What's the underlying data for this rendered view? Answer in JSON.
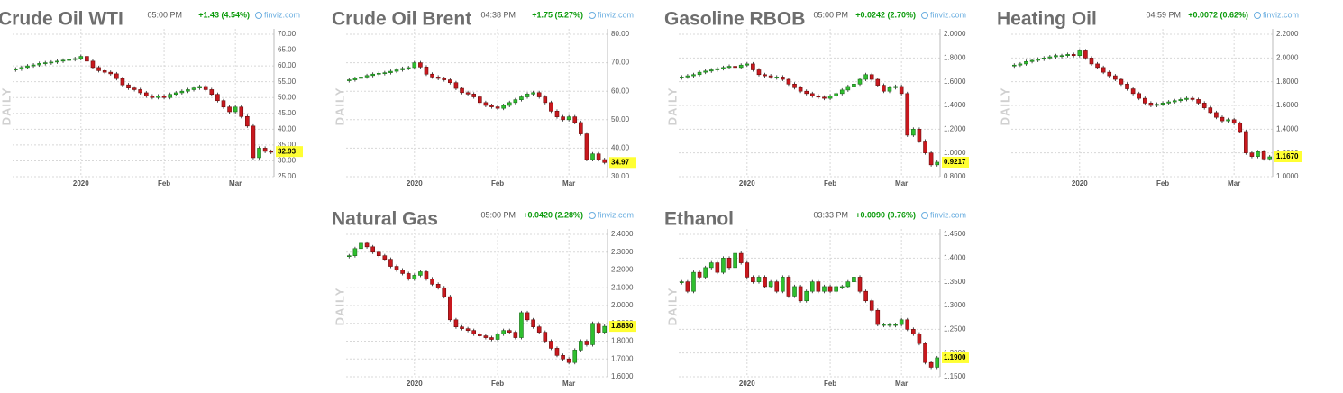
{
  "chart_data": [
    {
      "type": "candlestick",
      "title": "Crude Oil WTI",
      "time": "05:00 PM",
      "change": "+1.43 (4.54%)",
      "source": "finviz.com",
      "period": "DAILY",
      "categories": [
        null,
        null,
        null,
        null,
        null,
        null,
        null,
        null,
        null,
        null,
        null,
        "2020",
        null,
        null,
        null,
        null,
        null,
        null,
        null,
        null,
        null,
        null,
        null,
        null,
        null,
        "Feb",
        null,
        null,
        null,
        null,
        null,
        null,
        null,
        null,
        null,
        null,
        null,
        "Mar",
        null,
        null,
        null,
        null,
        null,
        null
      ],
      "close": [
        59,
        59.5,
        60,
        60.3,
        60.8,
        61,
        61.2,
        61.5,
        61.8,
        62,
        62.3,
        63,
        61.5,
        59.5,
        58.5,
        58,
        57.5,
        56,
        54,
        53,
        52.5,
        51.5,
        50.5,
        50,
        50.5,
        50,
        51,
        51.5,
        52,
        52.5,
        53,
        53.5,
        52.5,
        51,
        49,
        47,
        45.5,
        47,
        44,
        41,
        31,
        34,
        33,
        32.93
      ],
      "last": 32.93,
      "ylim": [
        25,
        70
      ],
      "yticks": [
        {
          "value": 25,
          "label": "25.00"
        },
        {
          "value": 30,
          "label": "30.00"
        },
        {
          "value": 35,
          "label": "35.00"
        },
        {
          "value": 40,
          "label": "40.00"
        },
        {
          "value": 45,
          "label": "45.00"
        },
        {
          "value": 50,
          "label": "50.00"
        },
        {
          "value": 55,
          "label": "55.00"
        },
        {
          "value": 60,
          "label": "60.00"
        },
        {
          "value": 65,
          "label": "65.00"
        },
        {
          "value": 70,
          "label": "70.00"
        }
      ]
    },
    {
      "type": "candlestick",
      "title": "Crude Oil Brent",
      "time": "04:38 PM",
      "change": "+1.75 (5.27%)",
      "source": "finviz.com",
      "period": "DAILY",
      "categories": [
        null,
        null,
        null,
        null,
        null,
        null,
        null,
        null,
        null,
        null,
        null,
        "2020",
        null,
        null,
        null,
        null,
        null,
        null,
        null,
        null,
        null,
        null,
        null,
        null,
        null,
        "Feb",
        null,
        null,
        null,
        null,
        null,
        null,
        null,
        null,
        null,
        null,
        null,
        "Mar",
        null,
        null,
        null,
        null,
        null,
        null
      ],
      "close": [
        64,
        64.5,
        65,
        65.5,
        66,
        66.3,
        66.5,
        67,
        67.5,
        68,
        68.3,
        70,
        68.5,
        66,
        65,
        64.5,
        64,
        63,
        61,
        59.5,
        59,
        58,
        56,
        55,
        54.5,
        54,
        55,
        56,
        57,
        58,
        59,
        59.5,
        58,
        56,
        53,
        51,
        50,
        51,
        49,
        45,
        36,
        38,
        36,
        34.97
      ],
      "last": 34.97,
      "ylim": [
        30,
        80
      ],
      "yticks": [
        {
          "value": 30,
          "label": "30.00"
        },
        {
          "value": 40,
          "label": "40.00"
        },
        {
          "value": 50,
          "label": "50.00"
        },
        {
          "value": 60,
          "label": "60.00"
        },
        {
          "value": 70,
          "label": "70.00"
        },
        {
          "value": 80,
          "label": "80.00"
        }
      ]
    },
    {
      "type": "candlestick",
      "title": "Gasoline RBOB",
      "time": "05:00 PM",
      "change": "+0.0242 (2.70%)",
      "source": "finviz.com",
      "period": "DAILY",
      "categories": [
        null,
        null,
        null,
        null,
        null,
        null,
        null,
        null,
        null,
        null,
        null,
        "2020",
        null,
        null,
        null,
        null,
        null,
        null,
        null,
        null,
        null,
        null,
        null,
        null,
        null,
        "Feb",
        null,
        null,
        null,
        null,
        null,
        null,
        null,
        null,
        null,
        null,
        null,
        "Mar",
        null,
        null,
        null,
        null,
        null,
        null
      ],
      "close": [
        1.64,
        1.65,
        1.66,
        1.68,
        1.69,
        1.7,
        1.71,
        1.72,
        1.73,
        1.72,
        1.74,
        1.75,
        1.7,
        1.66,
        1.65,
        1.64,
        1.64,
        1.62,
        1.58,
        1.55,
        1.52,
        1.5,
        1.48,
        1.47,
        1.46,
        1.48,
        1.5,
        1.53,
        1.56,
        1.58,
        1.62,
        1.66,
        1.62,
        1.57,
        1.52,
        1.55,
        1.56,
        1.5,
        1.15,
        1.2,
        1.1,
        1.0,
        0.9,
        0.9217
      ],
      "last": 0.9217,
      "ylim": [
        0.8,
        2.0
      ],
      "yticks": [
        {
          "value": 0.8,
          "label": "0.8000"
        },
        {
          "value": 1.0,
          "label": "1.0000"
        },
        {
          "value": 1.2,
          "label": "1.2000"
        },
        {
          "value": 1.4,
          "label": "1.4000"
        },
        {
          "value": 1.6,
          "label": "1.6000"
        },
        {
          "value": 1.8,
          "label": "1.8000"
        },
        {
          "value": 2.0,
          "label": "2.0000"
        }
      ]
    },
    {
      "type": "candlestick",
      "title": "Heating Oil",
      "time": "04:59 PM",
      "change": "+0.0072 (0.62%)",
      "source": "finviz.com",
      "period": "DAILY",
      "categories": [
        null,
        null,
        null,
        null,
        null,
        null,
        null,
        null,
        null,
        null,
        null,
        "2020",
        null,
        null,
        null,
        null,
        null,
        null,
        null,
        null,
        null,
        null,
        null,
        null,
        null,
        "Feb",
        null,
        null,
        null,
        null,
        null,
        null,
        null,
        null,
        null,
        null,
        null,
        "Mar",
        null,
        null,
        null,
        null,
        null,
        null
      ],
      "close": [
        1.94,
        1.95,
        1.97,
        1.98,
        1.99,
        2.0,
        2.01,
        2.02,
        2.02,
        2.03,
        2.02,
        2.06,
        2.0,
        1.95,
        1.92,
        1.88,
        1.85,
        1.82,
        1.78,
        1.74,
        1.7,
        1.66,
        1.62,
        1.6,
        1.61,
        1.62,
        1.63,
        1.64,
        1.65,
        1.66,
        1.65,
        1.62,
        1.58,
        1.54,
        1.5,
        1.47,
        1.48,
        1.45,
        1.38,
        1.2,
        1.17,
        1.21,
        1.15,
        1.167
      ],
      "last": {
        "value": 1.167,
        "label": "1.1670"
      },
      "ylim": [
        1.0,
        2.2
      ],
      "yticks": [
        {
          "value": 1.0,
          "label": "1.0000"
        },
        {
          "value": 1.2,
          "label": "1.2000"
        },
        {
          "value": 1.4,
          "label": "1.4000"
        },
        {
          "value": 1.6,
          "label": "1.6000"
        },
        {
          "value": 1.8,
          "label": "1.8000"
        },
        {
          "value": 2.0,
          "label": "2.0000"
        },
        {
          "value": 2.2,
          "label": "2.2000"
        }
      ]
    },
    {
      "type": "candlestick",
      "title": "Natural Gas",
      "time": "05:00 PM",
      "change": "+0.0420 (2.28%)",
      "source": "finviz.com",
      "period": "DAILY",
      "categories": [
        null,
        null,
        null,
        null,
        null,
        null,
        null,
        null,
        null,
        null,
        null,
        "2020",
        null,
        null,
        null,
        null,
        null,
        null,
        null,
        null,
        null,
        null,
        null,
        null,
        null,
        "Feb",
        null,
        null,
        null,
        null,
        null,
        null,
        null,
        null,
        null,
        null,
        null,
        "Mar",
        null,
        null,
        null,
        null,
        null,
        null
      ],
      "close": [
        2.28,
        2.32,
        2.35,
        2.33,
        2.3,
        2.28,
        2.26,
        2.22,
        2.2,
        2.18,
        2.15,
        2.17,
        2.19,
        2.15,
        2.12,
        2.1,
        2.05,
        1.92,
        1.88,
        1.87,
        1.86,
        1.84,
        1.83,
        1.82,
        1.81,
        1.84,
        1.86,
        1.85,
        1.82,
        1.96,
        1.92,
        1.88,
        1.85,
        1.8,
        1.76,
        1.72,
        1.7,
        1.68,
        1.75,
        1.8,
        1.78,
        1.9,
        1.85,
        1.883
      ],
      "last": {
        "value": 1.883,
        "label": "1.8830"
      },
      "ylim": [
        1.6,
        2.4
      ],
      "yticks": [
        {
          "value": 1.6,
          "label": "1.6000"
        },
        {
          "value": 1.7,
          "label": "1.7000"
        },
        {
          "value": 1.8,
          "label": "1.8000"
        },
        {
          "value": 1.9,
          "label": "1.9000"
        },
        {
          "value": 2.0,
          "label": "2.0000"
        },
        {
          "value": 2.1,
          "label": "2.1000"
        },
        {
          "value": 2.2,
          "label": "2.2000"
        },
        {
          "value": 2.3,
          "label": "2.3000"
        },
        {
          "value": 2.4,
          "label": "2.4000"
        }
      ]
    },
    {
      "type": "candlestick",
      "title": "Ethanol",
      "time": "03:33 PM",
      "change": "+0.0090 (0.76%)",
      "source": "finviz.com",
      "period": "DAILY",
      "categories": [
        null,
        null,
        null,
        null,
        null,
        null,
        null,
        null,
        null,
        null,
        null,
        "2020",
        null,
        null,
        null,
        null,
        null,
        null,
        null,
        null,
        null,
        null,
        null,
        null,
        null,
        "Feb",
        null,
        null,
        null,
        null,
        null,
        null,
        null,
        null,
        null,
        null,
        null,
        "Mar",
        null,
        null,
        null,
        null,
        null,
        null
      ],
      "close": [
        1.35,
        1.33,
        1.37,
        1.36,
        1.38,
        1.39,
        1.37,
        1.4,
        1.38,
        1.41,
        1.39,
        1.36,
        1.35,
        1.36,
        1.34,
        1.35,
        1.33,
        1.36,
        1.32,
        1.34,
        1.31,
        1.33,
        1.35,
        1.33,
        1.34,
        1.33,
        1.34,
        1.34,
        1.35,
        1.36,
        1.33,
        1.31,
        1.29,
        1.26,
        1.26,
        1.26,
        1.26,
        1.27,
        1.25,
        1.24,
        1.22,
        1.18,
        1.17,
        1.19
      ],
      "last": {
        "value": 1.19,
        "label": "1.1900"
      },
      "ylim": [
        1.15,
        1.45
      ],
      "yticks": [
        {
          "value": 1.15,
          "label": "1.1500"
        },
        {
          "value": 1.2,
          "label": "1.2000"
        },
        {
          "value": 1.25,
          "label": "1.2500"
        },
        {
          "value": 1.3,
          "label": "1.3000"
        },
        {
          "value": 1.35,
          "label": "1.3500"
        },
        {
          "value": 1.4,
          "label": "1.4000"
        },
        {
          "value": 1.45,
          "label": "1.4500"
        }
      ]
    }
  ]
}
